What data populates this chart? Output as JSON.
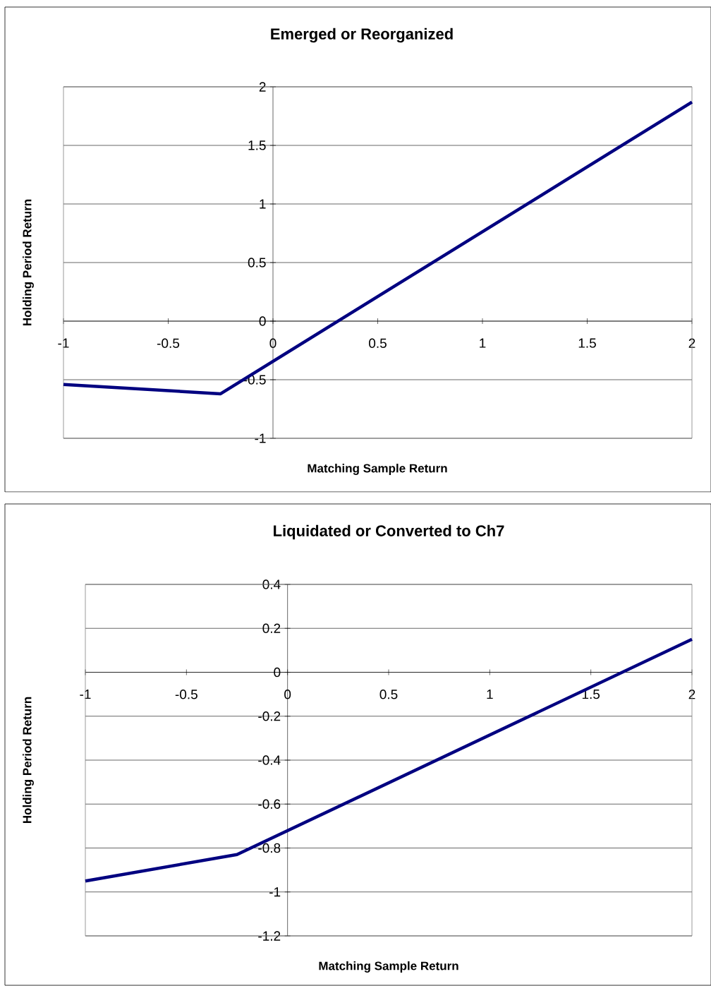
{
  "chart_data": [
    {
      "type": "line",
      "title": "Emerged or Reorganized",
      "xlabel": "Matching Sample Return",
      "ylabel": "Holding Period Return",
      "color": "#000080",
      "grid": "y",
      "x": [
        -1,
        -0.25,
        2
      ],
      "values": [
        -0.54,
        -0.62,
        1.87
      ],
      "xlim": [
        -1,
        2
      ],
      "ylim": [
        -1,
        2
      ],
      "xticks": [
        -1,
        -0.5,
        0,
        0.5,
        1,
        1.5,
        2
      ],
      "yticks": [
        -1,
        -0.5,
        0,
        0.5,
        1,
        1.5,
        2
      ]
    },
    {
      "type": "line",
      "title": "Liquidated or Converted to Ch7",
      "xlabel": "Matching Sample Return",
      "ylabel": "Holding Period Return",
      "color": "#000080",
      "grid": "y",
      "x": [
        -1,
        -0.25,
        2
      ],
      "values": [
        -0.95,
        -0.83,
        0.15
      ],
      "xlim": [
        -1,
        2
      ],
      "ylim": [
        -1.2,
        0.4
      ],
      "xticks": [
        -1,
        -0.5,
        0,
        0.5,
        1,
        1.5,
        2
      ],
      "yticks": [
        -1.2,
        -1,
        -0.8,
        -0.6,
        -0.4,
        -0.2,
        0,
        0.2,
        0.4
      ]
    }
  ]
}
